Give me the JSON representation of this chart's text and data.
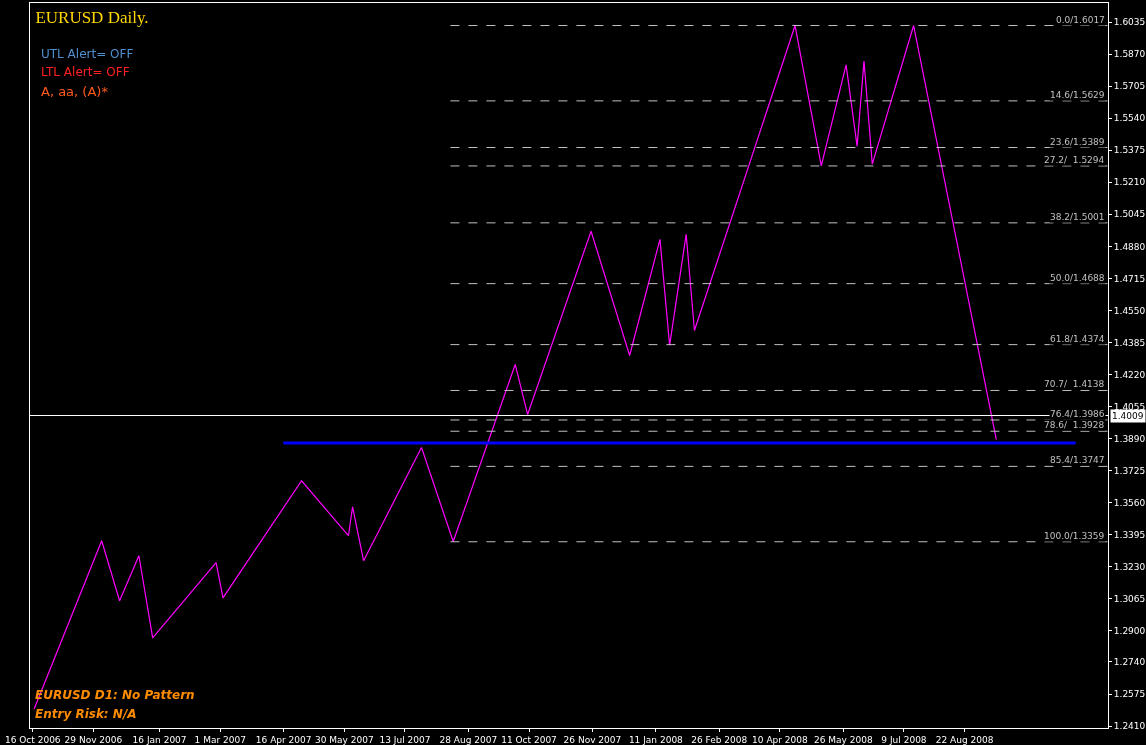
{
  "chart_data": {
    "type": "line",
    "title": "EURUSD Daily.",
    "annotations": [
      "UTL Alert= OFF",
      "LTL Alert= OFF",
      "A, aa, (A)*",
      "EURUSD D1: No Pattern",
      "Entry Risk: N/A"
    ],
    "series": [
      {
        "color": "#ff00ff",
        "x": [
          "2006-10-17",
          "2006-12-05",
          "2006-12-18",
          "2007-01-01",
          "2007-01-11",
          "2007-02-26",
          "2007-03-03",
          "2007-04-29",
          "2007-06-02",
          "2007-06-05",
          "2007-06-13",
          "2007-07-25",
          "2007-08-17",
          "2007-10-01",
          "2007-10-10",
          "2007-11-25",
          "2007-12-23",
          "2008-01-14",
          "2008-01-21",
          "2008-02-02",
          "2008-02-08",
          "2008-04-21",
          "2008-05-10",
          "2008-05-28",
          "2008-06-05",
          "2008-06-10",
          "2008-06-16",
          "2008-07-16",
          "2008-09-14"
        ],
        "values": [
          1.2498,
          1.3364,
          1.3055,
          1.3287,
          1.2864,
          1.3251,
          1.307,
          1.3673,
          1.339,
          1.3539,
          1.3261,
          1.3844,
          1.336,
          1.4272,
          1.4014,
          1.4958,
          1.4318,
          1.4916,
          1.437,
          1.4942,
          1.4447,
          1.6017,
          1.5294,
          1.5814,
          1.5396,
          1.5834,
          1.5303,
          1.6017,
          1.3885
        ]
      }
    ],
    "xlim": [
      "2006-10-14",
      "2008-12-04"
    ],
    "xticks": [
      {
        "value": "2006-10-16",
        "label": "16 Oct 2006"
      },
      {
        "value": "2006-11-29",
        "label": "29 Nov 2006"
      },
      {
        "value": "2007-01-16",
        "label": "16 Jan 2007"
      },
      {
        "value": "2007-03-01",
        "label": "1 Mar 2007"
      },
      {
        "value": "2007-04-16",
        "label": "16 Apr 2007"
      },
      {
        "value": "2007-05-30",
        "label": "30 May 2007"
      },
      {
        "value": "2007-07-13",
        "label": "13 Jul 2007"
      },
      {
        "value": "2007-08-28",
        "label": "28 Aug 2007"
      },
      {
        "value": "2007-10-11",
        "label": "11 Oct 2007"
      },
      {
        "value": "2007-11-26",
        "label": "26 Nov 2007"
      },
      {
        "value": "2008-01-11",
        "label": "11 Jan 2008"
      },
      {
        "value": "2008-02-26",
        "label": "26 Feb 2008"
      },
      {
        "value": "2008-04-10",
        "label": "10 Apr 2008"
      },
      {
        "value": "2008-05-26",
        "label": "26 May 2008"
      },
      {
        "value": "2008-07-09",
        "label": "9 Jul 2008"
      },
      {
        "value": "2008-08-22",
        "label": "22 Aug 2008"
      }
    ],
    "ylim": [
      1.24,
      1.6133
    ],
    "yticks": [
      {
        "value": 1.241,
        "label": "1.2410"
      },
      {
        "value": 1.2575,
        "label": "1.2575"
      },
      {
        "value": 1.274,
        "label": "1.2740"
      },
      {
        "value": 1.29,
        "label": "1.2900"
      },
      {
        "value": 1.3065,
        "label": "1.3065"
      },
      {
        "value": 1.323,
        "label": "1.3230"
      },
      {
        "value": 1.3395,
        "label": "1.3395"
      },
      {
        "value": 1.356,
        "label": "1.3560"
      },
      {
        "value": 1.3725,
        "label": "1.3725"
      },
      {
        "value": 1.389,
        "label": "1.3890"
      },
      {
        "value": 1.4055,
        "label": "1.4055"
      },
      {
        "value": 1.422,
        "label": "1.4220"
      },
      {
        "value": 1.4385,
        "label": "1.4385"
      },
      {
        "value": 1.455,
        "label": "1.4550"
      },
      {
        "value": 1.4715,
        "label": "1.4715"
      },
      {
        "value": 1.488,
        "label": "1.4880"
      },
      {
        "value": 1.5045,
        "label": "1.5045"
      },
      {
        "value": 1.521,
        "label": "1.5210"
      },
      {
        "value": 1.5375,
        "label": "1.5375"
      },
      {
        "value": 1.554,
        "label": "1.5540"
      },
      {
        "value": 1.5705,
        "label": "1.5705"
      },
      {
        "value": 1.587,
        "label": "1.5870"
      },
      {
        "value": 1.6035,
        "label": "1.6035"
      }
    ],
    "ref_lines": [
      {
        "axis": "y",
        "value": 1.6017,
        "label": "0.0/1.6017",
        "color": "#c0c0c0",
        "line_style": "dashed"
      },
      {
        "axis": "y",
        "value": 1.5629,
        "label": "14.6/1.5629",
        "color": "#c0c0c0",
        "line_style": "dashed"
      },
      {
        "axis": "y",
        "value": 1.5389,
        "label": "23.6/1.5389",
        "color": "#c0c0c0",
        "line_style": "dashed"
      },
      {
        "axis": "y",
        "value": 1.5294,
        "label": "27.2/  1.5294",
        "color": "#c0c0c0",
        "line_style": "dashed"
      },
      {
        "axis": "y",
        "value": 1.5001,
        "label": "38.2/1.5001",
        "color": "#c0c0c0",
        "line_style": "dashed"
      },
      {
        "axis": "y",
        "value": 1.4688,
        "label": "50.0/1.4688",
        "color": "#c0c0c0",
        "line_style": "dashed"
      },
      {
        "axis": "y",
        "value": 1.4374,
        "label": "61.8/1.4374",
        "color": "#c0c0c0",
        "line_style": "dashed"
      },
      {
        "axis": "y",
        "value": 1.4138,
        "label": "70.7/  1.4138",
        "color": "#c0c0c0",
        "line_style": "dashed"
      },
      {
        "axis": "y",
        "value": 1.3986,
        "label": "76.4/1.3986",
        "color": "#c0c0c0",
        "line_style": "dashed"
      },
      {
        "axis": "y",
        "value": 1.3928,
        "label": "78.6/  1.3928",
        "color": "#c0c0c0",
        "line_style": "dashed"
      },
      {
        "axis": "y",
        "value": 1.3747,
        "label": "85.4/1.3747",
        "color": "#c0c0c0",
        "line_style": "dashed"
      },
      {
        "axis": "y",
        "value": 1.3359,
        "label": "100.0/1.3359",
        "color": "#c0c0c0",
        "line_style": "dashed"
      },
      {
        "axis": "y",
        "value": 1.3867,
        "color": "#0000ff",
        "line_style": "solid"
      },
      {
        "axis": "y",
        "value": 1.4009,
        "label": "1.4009",
        "color": "#ffffff",
        "line_style": "solid"
      }
    ],
    "marker": "none",
    "line_style": "solid",
    "grid": false
  }
}
